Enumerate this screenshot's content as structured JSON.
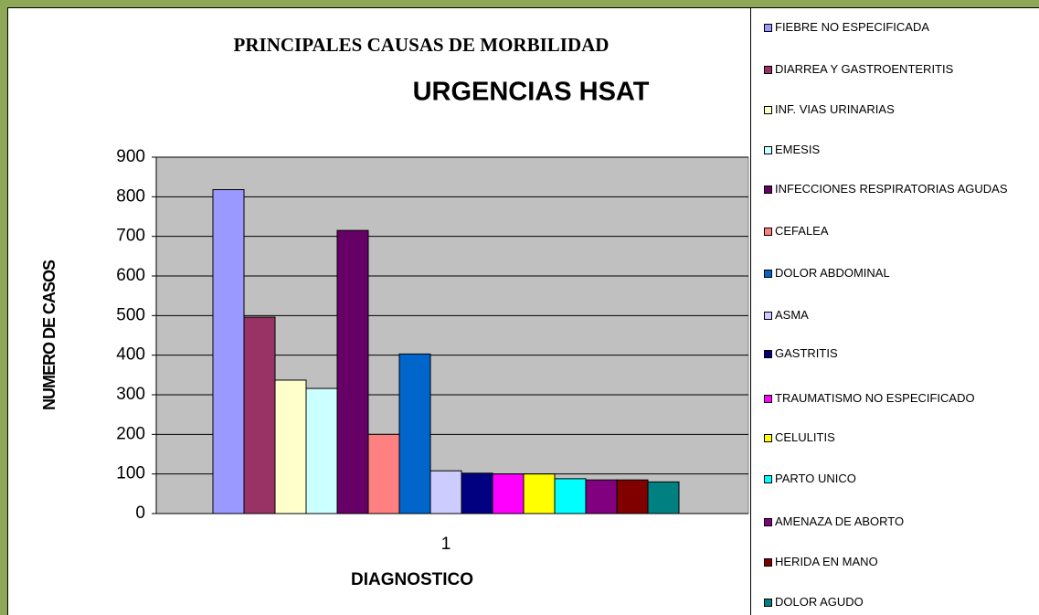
{
  "chart_data": {
    "type": "bar",
    "title": "PRINCIPALES CAUSAS DE MORBILIDAD",
    "subtitle": "URGENCIAS HSAT",
    "y_label": "NUMERO DE CASOS",
    "x_label": "DIAGNOSTICO",
    "categories": [
      "1"
    ],
    "ylim": [
      0,
      900
    ],
    "yticks": [
      0,
      100,
      200,
      300,
      400,
      500,
      600,
      700,
      800,
      900
    ],
    "grid": true,
    "legend": "right",
    "series": [
      {
        "name": "FIEBRE NO ESPECIFICADA",
        "color": "#9999ff",
        "values": [
          818
        ]
      },
      {
        "name": "DIARREA Y GASTROENTERITIS",
        "color": "#993366",
        "values": [
          496
        ]
      },
      {
        "name": "INF. VIAS URINARIAS",
        "color": "#ffffcc",
        "values": [
          337
        ]
      },
      {
        "name": "EMESIS",
        "color": "#ccffff",
        "values": [
          316
        ]
      },
      {
        "name": "INFECCIONES RESPIRATORIAS AGUDAS",
        "color": "#660066",
        "values": [
          715
        ]
      },
      {
        "name": "CEFALEA",
        "color": "#ff8080",
        "values": [
          200
        ]
      },
      {
        "name": "DOLOR ABDOMINAL",
        "color": "#0066cc",
        "values": [
          403
        ]
      },
      {
        "name": "ASMA",
        "color": "#ccccff",
        "values": [
          108
        ]
      },
      {
        "name": "GASTRITIS",
        "color": "#000080",
        "values": [
          102
        ]
      },
      {
        "name": "TRAUMATISMO NO ESPECIFICADO",
        "color": "#ff00ff",
        "values": [
          100
        ]
      },
      {
        "name": "CELULITIS",
        "color": "#ffff00",
        "values": [
          100
        ]
      },
      {
        "name": "PARTO UNICO",
        "color": "#00ffff",
        "values": [
          88
        ]
      },
      {
        "name": "AMENAZA DE ABORTO",
        "color": "#800080",
        "values": [
          85
        ]
      },
      {
        "name": "HERIDA EN MANO",
        "color": "#800000",
        "values": [
          85
        ]
      },
      {
        "name": "DOLOR AGUDO",
        "color": "#008080",
        "values": [
          80
        ]
      }
    ]
  }
}
